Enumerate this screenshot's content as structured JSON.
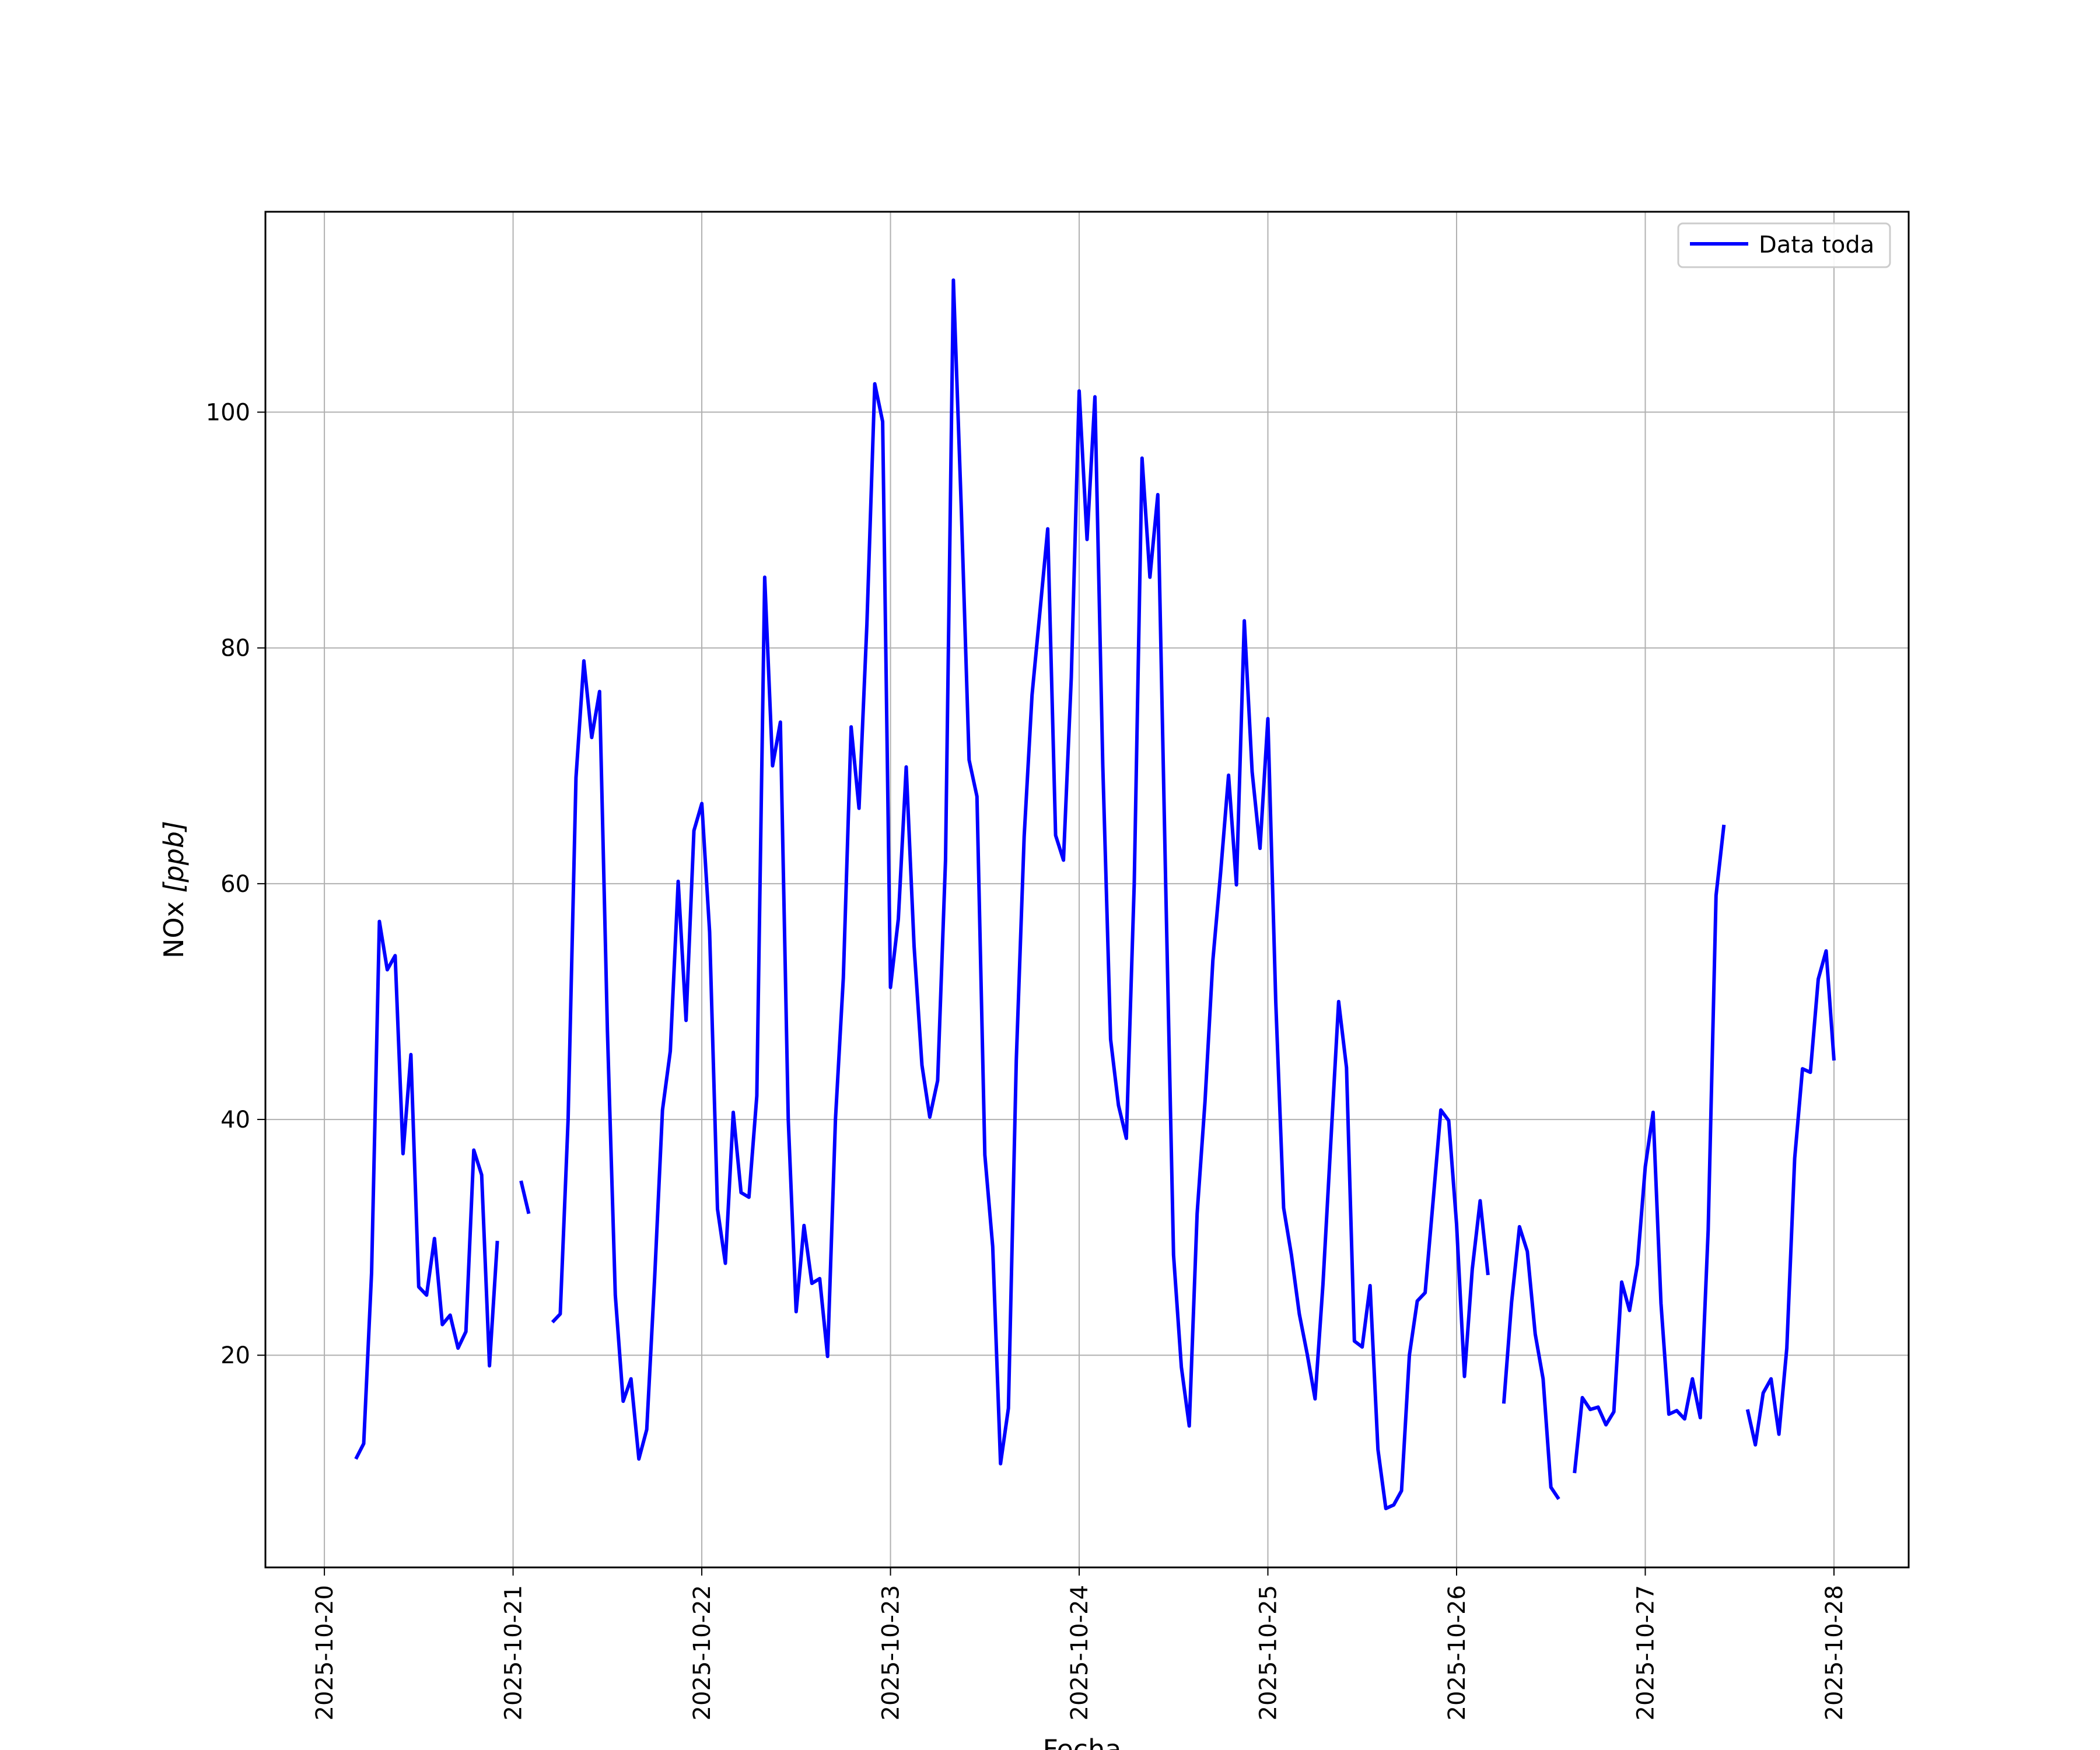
{
  "chart_data": {
    "type": "line",
    "xlabel": "Fecha",
    "ylabel_base": "NOx ",
    "ylabel_unit": "[ppb]",
    "legend_position": "top-right",
    "grid": true,
    "xlim": [
      "2025-10-19 16:30",
      "2025-10-28 09:30"
    ],
    "ylim": [
      2,
      117
    ],
    "y_ticks": [
      20,
      40,
      60,
      80,
      100
    ],
    "x_ticks": [
      "2025-10-20",
      "2025-10-21",
      "2025-10-22",
      "2025-10-23",
      "2025-10-24",
      "2025-10-25",
      "2025-10-26",
      "2025-10-27",
      "2025-10-28"
    ],
    "series": [
      {
        "name": "Data toda",
        "color": "#0000ff",
        "points": [
          [
            "2025-10-20 04:00",
            11.2
          ],
          [
            "2025-10-20 05:00",
            12.5
          ],
          [
            "2025-10-20 06:00",
            27
          ],
          [
            "2025-10-20 07:00",
            56.8
          ],
          [
            "2025-10-20 08:00",
            52.7
          ],
          [
            "2025-10-20 09:00",
            53.9
          ],
          [
            "2025-10-20 10:00",
            37.1
          ],
          [
            "2025-10-20 11:00",
            45.5
          ],
          [
            "2025-10-20 12:00",
            25.8
          ],
          [
            "2025-10-20 13:00",
            25.1
          ],
          [
            "2025-10-20 14:00",
            29.9
          ],
          [
            "2025-10-20 15:00",
            22.6
          ],
          [
            "2025-10-20 16:00",
            23.4
          ],
          [
            "2025-10-20 17:00",
            20.6
          ],
          [
            "2025-10-20 18:00",
            22
          ],
          [
            "2025-10-20 19:00",
            37.4
          ],
          [
            "2025-10-20 20:00",
            35.3
          ],
          [
            "2025-10-20 21:00",
            19.1
          ],
          [
            "2025-10-20 22:00",
            29.7
          ],
          [
            null,
            null
          ],
          [
            "2025-10-21 01:00",
            34.8
          ],
          [
            "2025-10-21 02:00",
            32
          ],
          [
            null,
            null
          ],
          [
            "2025-10-21 05:00",
            22.8
          ],
          [
            "2025-10-21 06:00",
            23.5
          ],
          [
            "2025-10-21 07:00",
            40
          ],
          [
            "2025-10-21 08:00",
            69
          ],
          [
            "2025-10-21 09:00",
            78.9
          ],
          [
            "2025-10-21 10:00",
            72.4
          ],
          [
            "2025-10-21 11:00",
            76.3
          ],
          [
            "2025-10-21 12:00",
            47.5
          ],
          [
            "2025-10-21 13:00",
            25.1
          ],
          [
            "2025-10-21 14:00",
            16.1
          ],
          [
            "2025-10-21 15:00",
            18
          ],
          [
            "2025-10-21 16:00",
            11.2
          ],
          [
            "2025-10-21 17:00",
            13.7
          ],
          [
            "2025-10-21 18:00",
            26.5
          ],
          [
            "2025-10-21 19:00",
            40.8
          ],
          [
            "2025-10-21 20:00",
            45.8
          ],
          [
            "2025-10-21 21:00",
            60.2
          ],
          [
            "2025-10-21 22:00",
            48.4
          ],
          [
            "2025-10-21 23:00",
            64.5
          ],
          [
            "2025-10-22 00:00",
            66.8
          ],
          [
            "2025-10-22 01:00",
            55.9
          ],
          [
            "2025-10-22 02:00",
            32.4
          ],
          [
            "2025-10-22 03:00",
            27.8
          ],
          [
            "2025-10-22 04:00",
            40.6
          ],
          [
            "2025-10-22 05:00",
            33.8
          ],
          [
            "2025-10-22 06:00",
            33.4
          ],
          [
            "2025-10-22 07:00",
            42
          ],
          [
            "2025-10-22 08:00",
            86
          ],
          [
            "2025-10-22 09:00",
            70
          ],
          [
            "2025-10-22 10:00",
            73.7
          ],
          [
            "2025-10-22 11:00",
            40
          ],
          [
            "2025-10-22 12:00",
            23.7
          ],
          [
            "2025-10-22 13:00",
            31
          ],
          [
            "2025-10-22 14:00",
            26.1
          ],
          [
            "2025-10-22 15:00",
            26.5
          ],
          [
            "2025-10-22 16:00",
            19.9
          ],
          [
            "2025-10-22 17:00",
            40
          ],
          [
            "2025-10-22 18:00",
            52
          ],
          [
            "2025-10-22 19:00",
            73.3
          ],
          [
            "2025-10-22 20:00",
            66.4
          ],
          [
            "2025-10-22 21:00",
            82
          ],
          [
            "2025-10-22 22:00",
            102.4
          ],
          [
            "2025-10-22 23:00",
            99.2
          ],
          [
            "2025-10-23 00:00",
            51.2
          ],
          [
            "2025-10-23 01:00",
            57
          ],
          [
            "2025-10-23 02:00",
            69.9
          ],
          [
            "2025-10-23 03:00",
            54.7
          ],
          [
            "2025-10-23 04:00",
            44.6
          ],
          [
            "2025-10-23 05:00",
            40.2
          ],
          [
            "2025-10-23 06:00",
            43.3
          ],
          [
            "2025-10-23 07:00",
            62
          ],
          [
            "2025-10-23 08:00",
            111.2
          ],
          [
            "2025-10-23 09:00",
            92
          ],
          [
            "2025-10-23 10:00",
            70.5
          ],
          [
            "2025-10-23 11:00",
            67.4
          ],
          [
            "2025-10-23 12:00",
            37
          ],
          [
            "2025-10-23 13:00",
            29.2
          ],
          [
            "2025-10-23 14:00",
            10.8
          ],
          [
            "2025-10-23 15:00",
            15.5
          ],
          [
            "2025-10-23 16:00",
            45
          ],
          [
            "2025-10-23 17:00",
            64
          ],
          [
            "2025-10-23 18:00",
            76
          ],
          [
            "2025-10-23 19:00",
            83
          ],
          [
            "2025-10-23 20:00",
            90.1
          ],
          [
            "2025-10-23 21:00",
            64.1
          ],
          [
            "2025-10-23 22:00",
            62
          ],
          [
            "2025-10-23 23:00",
            77.5
          ],
          [
            "2025-10-24 00:00",
            101.8
          ],
          [
            "2025-10-24 01:00",
            89.2
          ],
          [
            "2025-10-24 02:00",
            101.3
          ],
          [
            "2025-10-24 03:00",
            70
          ],
          [
            "2025-10-24 04:00",
            46.8
          ],
          [
            "2025-10-24 05:00",
            41.2
          ],
          [
            "2025-10-24 06:00",
            38.4
          ],
          [
            "2025-10-24 07:00",
            60
          ],
          [
            "2025-10-24 08:00",
            96.1
          ],
          [
            "2025-10-24 09:00",
            86
          ],
          [
            "2025-10-24 10:00",
            93
          ],
          [
            "2025-10-24 11:00",
            60
          ],
          [
            "2025-10-24 12:00",
            28.5
          ],
          [
            "2025-10-24 13:00",
            19
          ],
          [
            "2025-10-24 14:00",
            14
          ],
          [
            "2025-10-24 15:00",
            32
          ],
          [
            "2025-10-24 16:00",
            41.5
          ],
          [
            "2025-10-24 17:00",
            53.5
          ],
          [
            "2025-10-24 18:00",
            61
          ],
          [
            "2025-10-24 19:00",
            69.2
          ],
          [
            "2025-10-24 20:00",
            59.9
          ],
          [
            "2025-10-24 21:00",
            82.3
          ],
          [
            "2025-10-24 22:00",
            69.5
          ],
          [
            "2025-10-24 23:00",
            63
          ],
          [
            "2025-10-25 00:00",
            74
          ],
          [
            "2025-10-25 01:00",
            50
          ],
          [
            "2025-10-25 02:00",
            32.5
          ],
          [
            "2025-10-25 03:00",
            28.5
          ],
          [
            "2025-10-25 04:00",
            23.5
          ],
          [
            "2025-10-25 05:00",
            20.1
          ],
          [
            "2025-10-25 06:00",
            16.3
          ],
          [
            "2025-10-25 07:00",
            26
          ],
          [
            "2025-10-25 08:00",
            38
          ],
          [
            "2025-10-25 09:00",
            50
          ],
          [
            "2025-10-25 10:00",
            44.4
          ],
          [
            "2025-10-25 11:00",
            21.2
          ],
          [
            "2025-10-25 12:00",
            20.7
          ],
          [
            "2025-10-25 13:00",
            25.9
          ],
          [
            "2025-10-25 14:00",
            12
          ],
          [
            "2025-10-25 15:00",
            7
          ],
          [
            "2025-10-25 16:00",
            7.3
          ],
          [
            "2025-10-25 17:00",
            8.5
          ],
          [
            "2025-10-25 18:00",
            20
          ],
          [
            "2025-10-25 19:00",
            24.6
          ],
          [
            "2025-10-25 20:00",
            25.3
          ],
          [
            "2025-10-25 21:00",
            33
          ],
          [
            "2025-10-25 22:00",
            40.8
          ],
          [
            "2025-10-25 23:00",
            39.9
          ],
          [
            "2025-10-26 00:00",
            31.1
          ],
          [
            "2025-10-26 01:00",
            18.2
          ],
          [
            "2025-10-26 02:00",
            27.3
          ],
          [
            "2025-10-26 03:00",
            33.1
          ],
          [
            "2025-10-26 04:00",
            26.8
          ],
          [
            null,
            null
          ],
          [
            "2025-10-26 06:00",
            15.9
          ],
          [
            "2025-10-26 07:00",
            24.5
          ],
          [
            "2025-10-26 08:00",
            30.9
          ],
          [
            "2025-10-26 09:00",
            28.8
          ],
          [
            "2025-10-26 10:00",
            21.8
          ],
          [
            "2025-10-26 11:00",
            18
          ],
          [
            "2025-10-26 12:00",
            8.8
          ],
          [
            "2025-10-26 13:00",
            7.8
          ],
          [
            null,
            null
          ],
          [
            "2025-10-26 15:00",
            10
          ],
          [
            "2025-10-26 16:00",
            16.4
          ],
          [
            "2025-10-26 17:00",
            15.4
          ],
          [
            "2025-10-26 18:00",
            15.6
          ],
          [
            "2025-10-26 19:00",
            14.1
          ],
          [
            "2025-10-26 20:00",
            15.2
          ],
          [
            "2025-10-26 21:00",
            26.2
          ],
          [
            "2025-10-26 22:00",
            23.8
          ],
          [
            "2025-10-26 23:00",
            27.7
          ],
          [
            "2025-10-27 00:00",
            36
          ],
          [
            "2025-10-27 01:00",
            40.6
          ],
          [
            "2025-10-27 02:00",
            24.4
          ],
          [
            "2025-10-27 03:00",
            15
          ],
          [
            "2025-10-27 04:00",
            15.3
          ],
          [
            "2025-10-27 05:00",
            14.6
          ],
          [
            "2025-10-27 06:00",
            18
          ],
          [
            "2025-10-27 07:00",
            14.7
          ],
          [
            "2025-10-27 08:00",
            30.6
          ],
          [
            "2025-10-27 09:00",
            59
          ],
          [
            "2025-10-27 10:00",
            65
          ],
          [
            null,
            null
          ],
          [
            "2025-10-27 13:00",
            15.4
          ],
          [
            "2025-10-27 14:00",
            12.4
          ],
          [
            "2025-10-27 15:00",
            16.8
          ],
          [
            "2025-10-27 16:00",
            18
          ],
          [
            "2025-10-27 17:00",
            13.3
          ],
          [
            "2025-10-27 18:00",
            20.6
          ],
          [
            "2025-10-27 19:00",
            36.7
          ],
          [
            "2025-10-27 20:00",
            44.3
          ],
          [
            "2025-10-27 21:00",
            44
          ],
          [
            "2025-10-27 22:00",
            51.9
          ],
          [
            "2025-10-27 23:00",
            54.3
          ],
          [
            "2025-10-28 00:00",
            45
          ]
        ]
      }
    ]
  }
}
